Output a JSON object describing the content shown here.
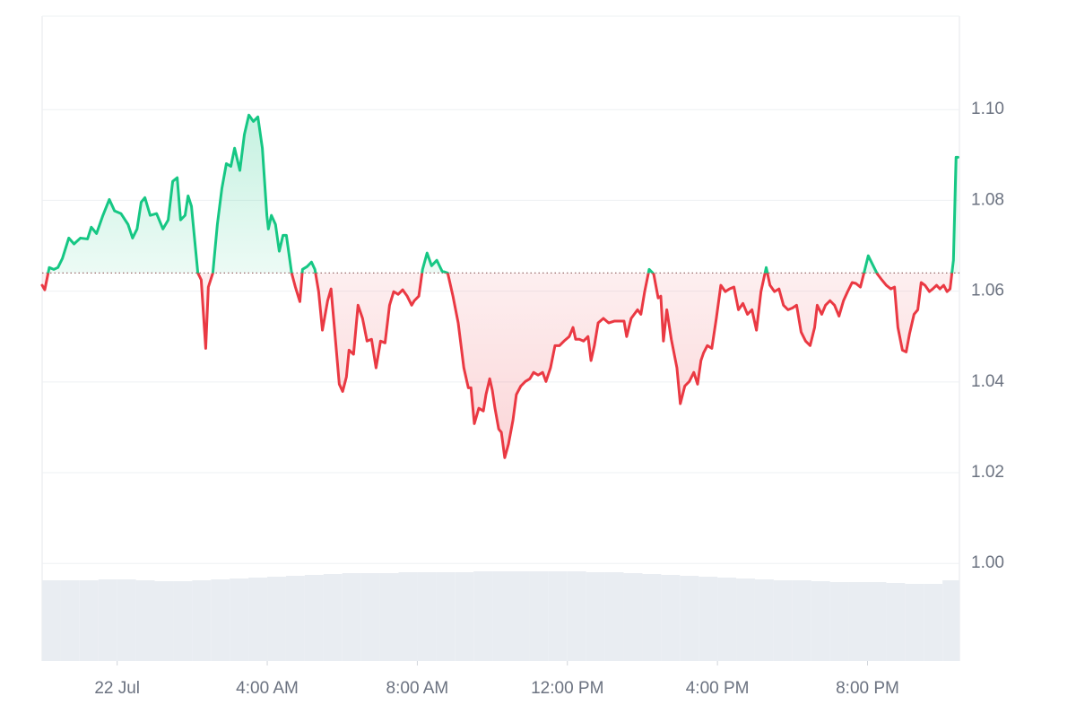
{
  "chart_data": {
    "type": "baseline-area",
    "x": [
      -2.0,
      -1.93,
      -1.81,
      -1.69,
      -1.58,
      -1.46,
      -1.29,
      -1.15,
      -0.98,
      -0.79,
      -0.69,
      -0.55,
      -0.38,
      -0.21,
      -0.07,
      0.1,
      0.29,
      0.41,
      0.53,
      0.64,
      0.74,
      0.88,
      1.05,
      1.22,
      1.36,
      1.48,
      1.6,
      1.69,
      1.81,
      1.89,
      1.98,
      2.15,
      2.24,
      2.36,
      2.43,
      2.55,
      2.67,
      2.79,
      2.91,
      3.03,
      3.13,
      3.27,
      3.39,
      3.51,
      3.63,
      3.75,
      3.87,
      3.99,
      4.03,
      4.11,
      4.22,
      4.32,
      4.42,
      4.51,
      4.65,
      4.75,
      4.87,
      4.94,
      5.06,
      5.18,
      5.27,
      5.37,
      5.47,
      5.61,
      5.7,
      5.8,
      5.92,
      6.01,
      6.11,
      6.18,
      6.3,
      6.42,
      6.54,
      6.66,
      6.78,
      6.9,
      7.02,
      7.14,
      7.26,
      7.37,
      7.49,
      7.61,
      7.73,
      7.85,
      7.92,
      8.04,
      8.14,
      8.26,
      8.38,
      8.52,
      8.66,
      8.81,
      8.95,
      9.09,
      9.24,
      9.36,
      9.43,
      9.52,
      9.64,
      9.76,
      9.83,
      9.93,
      10.0,
      10.07,
      10.17,
      10.24,
      10.33,
      10.43,
      10.55,
      10.64,
      10.76,
      10.88,
      11.0,
      11.1,
      11.22,
      11.34,
      11.43,
      11.55,
      11.67,
      11.79,
      11.91,
      12.05,
      12.15,
      12.22,
      12.32,
      12.43,
      12.55,
      12.63,
      12.72,
      12.82,
      12.96,
      13.1,
      13.25,
      13.39,
      13.51,
      13.58,
      13.7,
      13.87,
      13.96,
      14.06,
      14.18,
      14.3,
      14.42,
      14.49,
      14.56,
      14.65,
      14.77,
      14.92,
      15.01,
      15.13,
      15.25,
      15.37,
      15.47,
      15.56,
      15.63,
      15.73,
      15.85,
      15.97,
      16.09,
      16.21,
      16.32,
      16.44,
      16.56,
      16.68,
      16.8,
      16.92,
      17.04,
      17.16,
      17.3,
      17.4,
      17.52,
      17.64,
      17.76,
      17.88,
      18.0,
      18.11,
      18.23,
      18.35,
      18.47,
      18.59,
      18.66,
      18.78,
      18.88,
      19.0,
      19.12,
      19.24,
      19.36,
      19.47,
      19.59,
      19.69,
      19.81,
      19.93,
      20.02,
      20.14,
      20.26,
      20.38,
      20.5,
      20.62,
      20.72,
      20.81,
      20.93,
      21.03,
      21.12,
      21.24,
      21.34,
      21.43,
      21.53,
      21.65,
      21.74,
      21.84,
      21.93,
      22.03,
      22.12,
      22.2,
      22.29,
      22.36,
      22.41
    ],
    "values": [
      1.0613,
      1.0603,
      1.0652,
      1.0648,
      1.0652,
      1.0672,
      1.0717,
      1.0704,
      1.0717,
      1.0715,
      1.0741,
      1.0727,
      1.0767,
      1.0802,
      1.0777,
      1.0771,
      1.0747,
      1.0717,
      1.0737,
      1.0796,
      1.0806,
      1.0767,
      1.0771,
      1.0737,
      1.0757,
      1.0842,
      1.085,
      1.0757,
      1.0767,
      1.081,
      1.0787,
      1.064,
      1.0625,
      1.0474,
      1.0609,
      1.064,
      1.0747,
      1.0826,
      1.0881,
      1.0875,
      1.0915,
      1.0866,
      1.0945,
      1.0988,
      1.0974,
      1.0984,
      1.0915,
      1.0767,
      1.0737,
      1.0767,
      1.0747,
      1.0688,
      1.0723,
      1.0723,
      1.064,
      1.0609,
      1.0577,
      1.0648,
      1.0654,
      1.0664,
      1.0648,
      1.0599,
      1.0514,
      1.0579,
      1.0605,
      1.051,
      1.0395,
      1.0379,
      1.0411,
      1.047,
      1.0461,
      1.0569,
      1.054,
      1.049,
      1.0494,
      1.0431,
      1.049,
      1.0486,
      1.0569,
      1.0599,
      1.0593,
      1.0603,
      1.0589,
      1.0569,
      1.0579,
      1.0589,
      1.0648,
      1.0684,
      1.0656,
      1.0668,
      1.0644,
      1.064,
      1.0589,
      1.053,
      1.0431,
      1.0387,
      1.0387,
      1.0308,
      1.0342,
      1.0336,
      1.0372,
      1.0407,
      1.0381,
      1.0342,
      1.0296,
      1.0289,
      1.0233,
      1.0263,
      1.0316,
      1.0372,
      1.0391,
      1.0401,
      1.0407,
      1.0421,
      1.0415,
      1.0421,
      1.0401,
      1.0431,
      1.048,
      1.048,
      1.049,
      1.05,
      1.052,
      1.0494,
      1.0494,
      1.049,
      1.05,
      1.0447,
      1.048,
      1.053,
      1.054,
      1.053,
      1.0534,
      1.0534,
      1.0534,
      1.05,
      1.054,
      1.0559,
      1.0549,
      1.0599,
      1.0648,
      1.0638,
      1.0585,
      1.0589,
      1.049,
      1.0559,
      1.0494,
      1.0431,
      1.0352,
      1.0391,
      1.0401,
      1.0421,
      1.0395,
      1.0447,
      1.0464,
      1.048,
      1.0474,
      1.054,
      1.0613,
      1.0599,
      1.0605,
      1.0609,
      1.0559,
      1.0573,
      1.0549,
      1.0559,
      1.0514,
      1.0599,
      1.0652,
      1.0613,
      1.0599,
      1.0605,
      1.0569,
      1.0559,
      1.0563,
      1.0569,
      1.051,
      1.049,
      1.048,
      1.052,
      1.0569,
      1.0549,
      1.0569,
      1.0579,
      1.0569,
      1.0545,
      1.0579,
      1.0599,
      1.0619,
      1.0617,
      1.0609,
      1.0648,
      1.0678,
      1.0658,
      1.0638,
      1.0625,
      1.0613,
      1.0605,
      1.0609,
      1.052,
      1.047,
      1.0466,
      1.0506,
      1.0549,
      1.0559,
      1.0619,
      1.0613,
      1.0599,
      1.0605,
      1.0613,
      1.0605,
      1.0613,
      1.0599,
      1.0605,
      1.0668,
      1.0895,
      1.0895
    ],
    "baseline": 1.064,
    "up_color": "#16c784",
    "down_color": "#ea3943",
    "xlim": [
      -2,
      22.45
    ],
    "ylim": [
      0.9785,
      1.1206
    ],
    "xticks": [
      {
        "value": 0,
        "label": "22 Jul"
      },
      {
        "value": 4,
        "label": "4:00 AM"
      },
      {
        "value": 8,
        "label": "8:00 AM"
      },
      {
        "value": 12,
        "label": "12:00 PM"
      },
      {
        "value": 16,
        "label": "4:00 PM"
      },
      {
        "value": 20,
        "label": "8:00 PM"
      }
    ],
    "yticks": [
      {
        "value": 1,
        "label": "1.00"
      },
      1.02,
      1.04,
      1.06,
      1.08,
      {
        "value": 1.1,
        "label": "1.10"
      }
    ],
    "grid": true,
    "volume": {
      "x": [
        -2,
        -1.5,
        -1,
        -0.5,
        0,
        0.5,
        1,
        1.5,
        2,
        2.5,
        3,
        3.5,
        4,
        4.5,
        5,
        5.5,
        6,
        6.5,
        7,
        7.5,
        8,
        8.5,
        9,
        9.5,
        10,
        10.5,
        11,
        11.5,
        12,
        12.5,
        13,
        13.5,
        14,
        14.5,
        15,
        15.5,
        16,
        16.5,
        17,
        17.5,
        18,
        18.5,
        19,
        19.5,
        20,
        20.5,
        21,
        21.5,
        22
      ],
      "values": [
        90,
        90,
        90,
        91,
        91,
        90,
        89,
        89,
        90,
        91,
        92,
        93,
        94,
        95,
        96,
        97,
        98,
        98,
        98,
        99,
        99,
        99,
        99,
        100,
        100,
        100,
        100,
        100,
        100,
        99,
        99,
        98,
        97,
        96,
        95,
        94,
        93,
        92,
        91,
        90,
        90,
        89,
        88,
        88,
        88,
        87,
        86,
        86,
        90
      ],
      "color": "#e9edf2",
      "ylim": [
        0,
        100
      ]
    }
  }
}
